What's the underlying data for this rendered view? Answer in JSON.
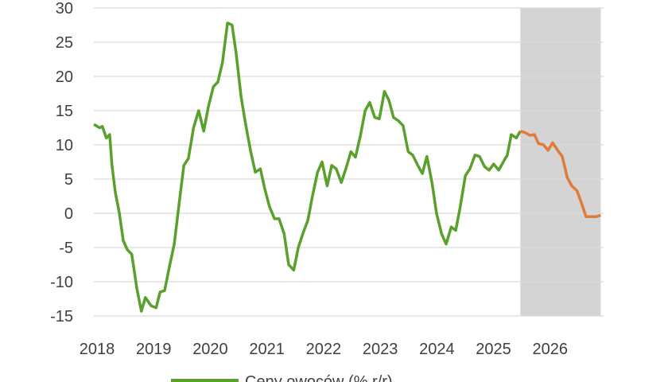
{
  "chart_data": {
    "type": "line",
    "xlim": [
      2018,
      2027
    ],
    "xticks": [
      2018,
      2019,
      2020,
      2021,
      2022,
      2023,
      2024,
      2025,
      2026
    ],
    "ylim": [
      -15,
      30
    ],
    "yticks": [
      -15,
      -10,
      -5,
      0,
      5,
      10,
      15,
      20,
      25,
      30
    ],
    "grid": true,
    "shaded_xrange": [
      2025.53,
      2026.95
    ],
    "shade_color": "#d4d4d4",
    "legend": "bottom",
    "series": [
      {
        "name": "Ceny owoców (% r/r)",
        "color": "#5aa02c",
        "x": [
          2018.0,
          2018.1,
          2018.15,
          2018.22,
          2018.28,
          2018.32,
          2018.38,
          2018.45,
          2018.52,
          2018.59,
          2018.67,
          2018.76,
          2018.84,
          2018.91,
          2019.01,
          2019.1,
          2019.17,
          2019.25,
          2019.33,
          2019.42,
          2019.5,
          2019.59,
          2019.67,
          2019.76,
          2019.85,
          2019.94,
          2020.02,
          2020.11,
          2020.19,
          2020.27,
          2020.36,
          2020.44,
          2020.51,
          2020.6,
          2020.68,
          2020.77,
          2020.85,
          2020.94,
          2021.02,
          2021.1,
          2021.19,
          2021.27,
          2021.36,
          2021.44,
          2021.53,
          2021.61,
          2021.69,
          2021.78,
          2021.86,
          2021.95,
          2022.03,
          2022.12,
          2022.2,
          2022.28,
          2022.37,
          2022.45,
          2022.54,
          2022.62,
          2022.71,
          2022.79,
          2022.87,
          2022.96,
          2023.04,
          2023.13,
          2023.21,
          2023.29,
          2023.38,
          2023.46,
          2023.55,
          2023.63,
          2023.72,
          2023.8,
          2023.88,
          2023.97,
          2024.05,
          2024.14,
          2024.22,
          2024.31,
          2024.39,
          2024.47,
          2024.56,
          2024.64,
          2024.73,
          2024.81,
          2024.9,
          2024.98,
          2025.06,
          2025.15,
          2025.23,
          2025.3,
          2025.37,
          2025.46,
          2025.53
        ],
        "values": [
          13,
          12.5,
          12.7,
          11,
          11.5,
          7,
          3,
          0,
          -4,
          -5.3,
          -6,
          -11,
          -14.3,
          -12.3,
          -13.5,
          -13.8,
          -11.5,
          -11.3,
          -8,
          -4.5,
          1,
          7,
          8,
          12.5,
          15,
          12,
          15.5,
          18.5,
          19.2,
          22,
          27.8,
          27.5,
          23.5,
          17,
          13,
          9,
          6,
          6.5,
          3.5,
          1,
          -0.8,
          -0.8,
          -3,
          -7.5,
          -8.3,
          -5,
          -3,
          -1,
          2.5,
          6,
          7.5,
          4,
          7,
          6.5,
          4.5,
          6.5,
          9,
          8.2,
          11.5,
          15,
          16.2,
          14,
          13.8,
          17.8,
          16.5,
          14,
          13.5,
          12.8,
          9,
          8.5,
          7,
          5.8,
          8.3,
          4.5,
          0,
          -3,
          -4.5,
          -2,
          -2.5,
          1,
          5.5,
          6.5,
          8.5,
          8.3,
          6.8,
          6.3,
          7.2,
          6.3,
          7.5,
          8.5,
          11.5,
          11,
          12
        ]
      },
      {
        "color": "#e07b39",
        "x": [
          2025.53,
          2025.61,
          2025.7,
          2025.78,
          2025.85,
          2025.94,
          2026.02,
          2026.1,
          2026.19,
          2026.27,
          2026.36,
          2026.44,
          2026.53,
          2026.61,
          2026.69,
          2026.78,
          2026.86,
          2026.95
        ],
        "values": [
          12,
          11.8,
          11.4,
          11.5,
          10.2,
          10,
          9.2,
          10.3,
          9.2,
          8.3,
          5.2,
          4,
          3.3,
          1.5,
          -0.5,
          -0.5,
          -0.5,
          -0.3
        ]
      }
    ]
  }
}
